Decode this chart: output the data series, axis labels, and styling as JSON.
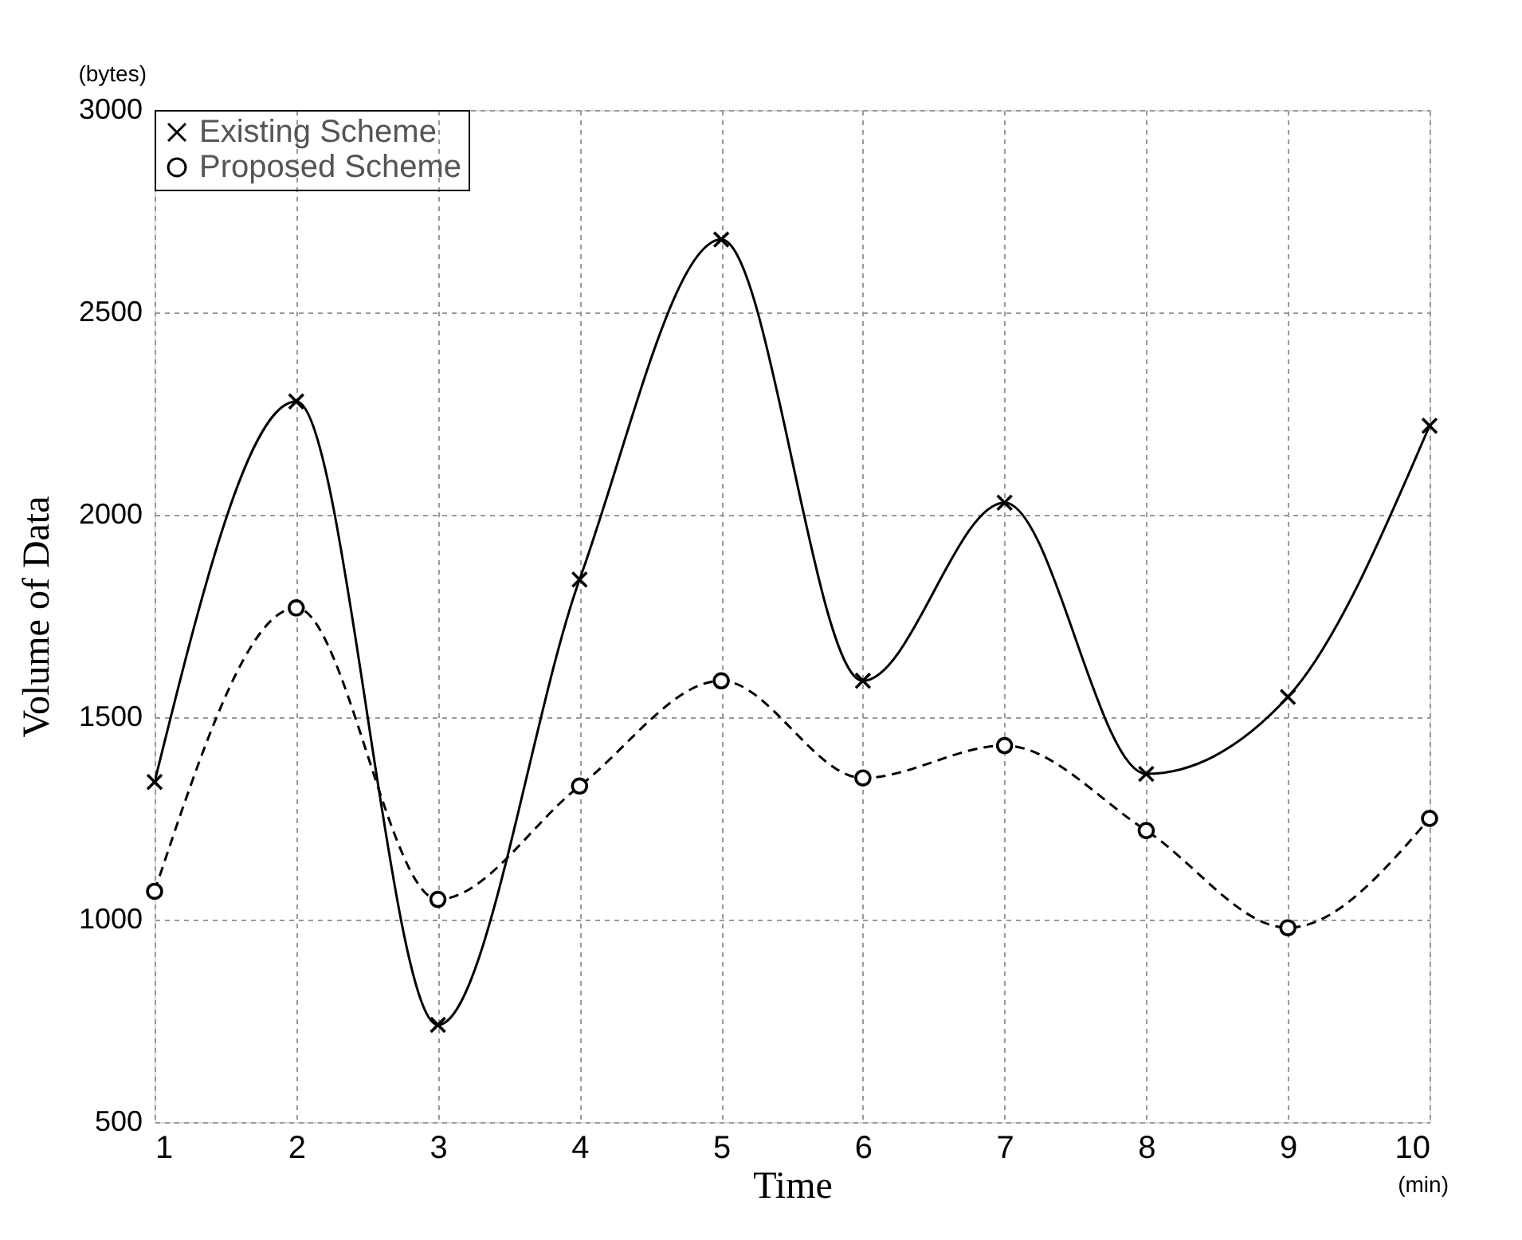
{
  "chart_data": {
    "type": "line",
    "xlabel": "Time",
    "ylabel": "Volume of Data",
    "annotations": [
      "(bytes)",
      "(min)"
    ],
    "x": [
      1,
      2,
      3,
      4,
      5,
      6,
      7,
      8,
      9,
      10
    ],
    "series": [
      {
        "name": "Existing Scheme",
        "color": "#000000",
        "marker": "cross",
        "line_style": "solid",
        "values": [
          1340,
          2280,
          740,
          1840,
          2680,
          1590,
          2030,
          1360,
          1550,
          2220
        ]
      },
      {
        "name": "Proposed Scheme",
        "color": "#000000",
        "marker": "circle",
        "line_style": "dashed",
        "values": [
          1070,
          1770,
          1050,
          1330,
          1590,
          1350,
          1430,
          1220,
          980,
          1250
        ]
      }
    ],
    "xlim": [
      1,
      10
    ],
    "xticks": [
      1,
      2,
      3,
      4,
      5,
      6,
      7,
      8,
      9,
      10
    ],
    "ylim": [
      500,
      3000
    ],
    "yticks": [
      500,
      1000,
      1500,
      2000,
      2500,
      3000
    ],
    "grid": true,
    "legend": "top left"
  }
}
